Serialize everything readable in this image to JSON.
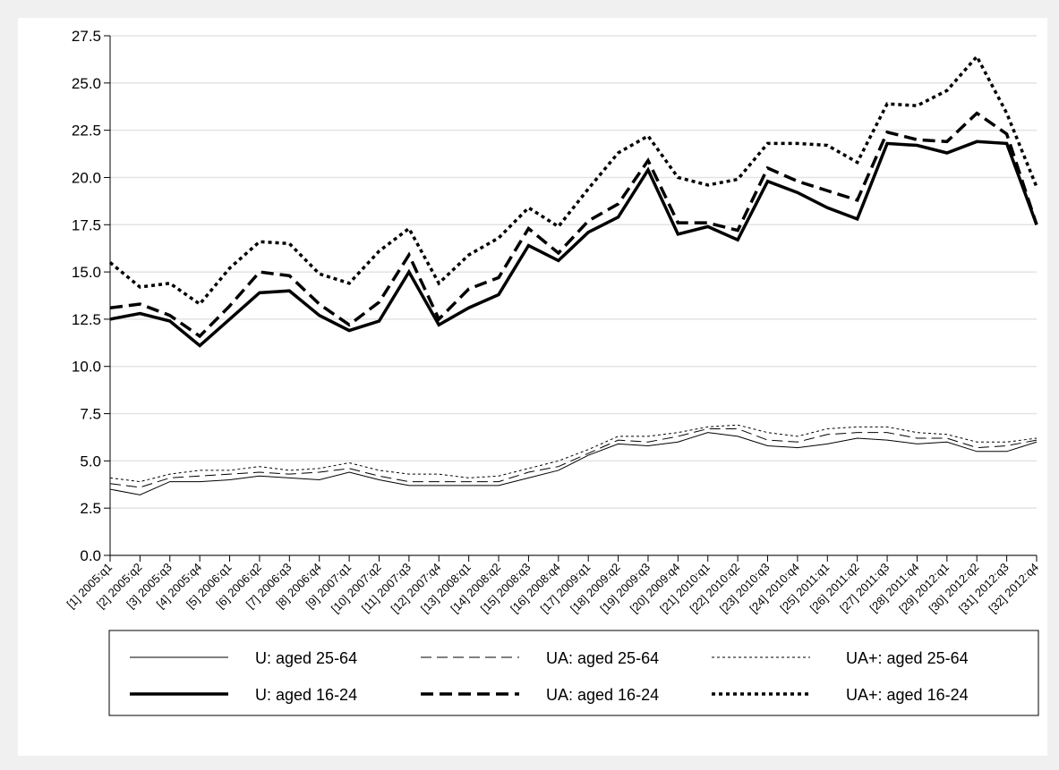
{
  "chart_data": {
    "type": "line",
    "categories": [
      "[1] 2005:q1",
      "[2] 2005:q2",
      "[3] 2005:q3",
      "[4] 2005:q4",
      "[5] 2006:q1",
      "[6] 2006:q2",
      "[7] 2006:q3",
      "[8] 2006:q4",
      "[9] 2007:q1",
      "[10] 2007:q2",
      "[11] 2007:q3",
      "[12] 2007:q4",
      "[13] 2008:q1",
      "[14] 2008:q2",
      "[15] 2008:q3",
      "[16] 2008:q4",
      "[17] 2009:q1",
      "[18] 2009:q2",
      "[19] 2009:q3",
      "[20] 2009:q4",
      "[21] 2010:q1",
      "[22] 2010:q2",
      "[23] 2010:q3",
      "[24] 2010:q4",
      "[25] 2011:q1",
      "[26] 2011:q2",
      "[27] 2011:q3",
      "[28] 2011:q4",
      "[29] 2012:q1",
      "[30] 2012:q2",
      "[31] 2012:q3",
      "[32] 2012:q4"
    ],
    "series": [
      {
        "name": "U: aged 25-64",
        "color": "#000000",
        "line_style": "solid",
        "line_width": 1,
        "values": [
          3.5,
          3.2,
          3.9,
          3.9,
          4.0,
          4.2,
          4.1,
          4.0,
          4.4,
          4.0,
          3.7,
          3.7,
          3.7,
          3.7,
          4.1,
          4.5,
          5.3,
          5.9,
          5.8,
          6.0,
          6.5,
          6.3,
          5.8,
          5.7,
          5.9,
          6.2,
          6.1,
          5.9,
          6.0,
          5.5,
          5.5,
          6.0
        ]
      },
      {
        "name": "UA: aged 25-64",
        "color": "#000000",
        "line_style": "dashed",
        "line_width": 1,
        "values": [
          3.8,
          3.6,
          4.1,
          4.2,
          4.3,
          4.4,
          4.3,
          4.4,
          4.6,
          4.2,
          3.9,
          3.9,
          3.9,
          3.9,
          4.4,
          4.7,
          5.4,
          6.1,
          6.0,
          6.3,
          6.7,
          6.7,
          6.1,
          6.0,
          6.4,
          6.5,
          6.5,
          6.2,
          6.2,
          5.7,
          5.8,
          6.1
        ]
      },
      {
        "name": "UA+: aged 25-64",
        "color": "#000000",
        "line_style": "dotted",
        "line_width": 1,
        "values": [
          4.1,
          3.9,
          4.3,
          4.5,
          4.5,
          4.7,
          4.5,
          4.6,
          4.9,
          4.5,
          4.3,
          4.3,
          4.1,
          4.2,
          4.6,
          5.0,
          5.6,
          6.3,
          6.3,
          6.5,
          6.8,
          6.9,
          6.5,
          6.3,
          6.7,
          6.8,
          6.8,
          6.5,
          6.4,
          6.0,
          6.0,
          6.2
        ]
      },
      {
        "name": "U: aged 16-24",
        "color": "#000000",
        "line_style": "solid",
        "line_width": 3.5,
        "values": [
          12.5,
          12.8,
          12.4,
          11.1,
          12.5,
          13.9,
          14.0,
          12.7,
          11.9,
          12.4,
          15.0,
          12.2,
          13.1,
          13.8,
          16.4,
          15.6,
          17.1,
          17.9,
          20.4,
          17.0,
          17.4,
          16.7,
          19.8,
          19.2,
          18.4,
          17.8,
          21.8,
          21.7,
          21.3,
          21.9,
          21.8,
          17.5
        ]
      },
      {
        "name": "UA: aged 16-24",
        "color": "#000000",
        "line_style": "dashed",
        "line_width": 3.5,
        "values": [
          13.1,
          13.3,
          12.7,
          11.6,
          13.2,
          15.0,
          14.8,
          13.3,
          12.2,
          13.4,
          15.9,
          12.5,
          14.1,
          14.7,
          17.3,
          16.0,
          17.7,
          18.6,
          20.9,
          17.6,
          17.6,
          17.2,
          20.5,
          19.8,
          19.3,
          18.8,
          22.4,
          22.0,
          21.9,
          23.4,
          22.3,
          17.5
        ]
      },
      {
        "name": "UA+: aged 16-24",
        "color": "#000000",
        "line_style": "dotted",
        "line_width": 3.5,
        "values": [
          15.5,
          14.2,
          14.4,
          13.3,
          15.2,
          16.6,
          16.5,
          14.9,
          14.4,
          16.1,
          17.3,
          14.4,
          15.9,
          16.8,
          18.4,
          17.4,
          19.4,
          21.3,
          22.2,
          20.0,
          19.6,
          19.9,
          21.8,
          21.8,
          21.7,
          20.8,
          23.9,
          23.8,
          24.6,
          26.4,
          23.4,
          19.5
        ]
      }
    ],
    "ylim": [
      0,
      27.5
    ],
    "yticks": [
      {
        "value": 0,
        "label": "0.0"
      },
      2.5,
      {
        "value": 5,
        "label": "5.0"
      },
      7.5,
      {
        "value": 10,
        "label": "10.0"
      },
      12.5,
      {
        "value": 15,
        "label": "15.0"
      },
      17.5,
      {
        "value": 20,
        "label": "20.0"
      },
      22.5,
      {
        "value": 25,
        "label": "25.0"
      },
      27.5
    ],
    "grid": true
  }
}
